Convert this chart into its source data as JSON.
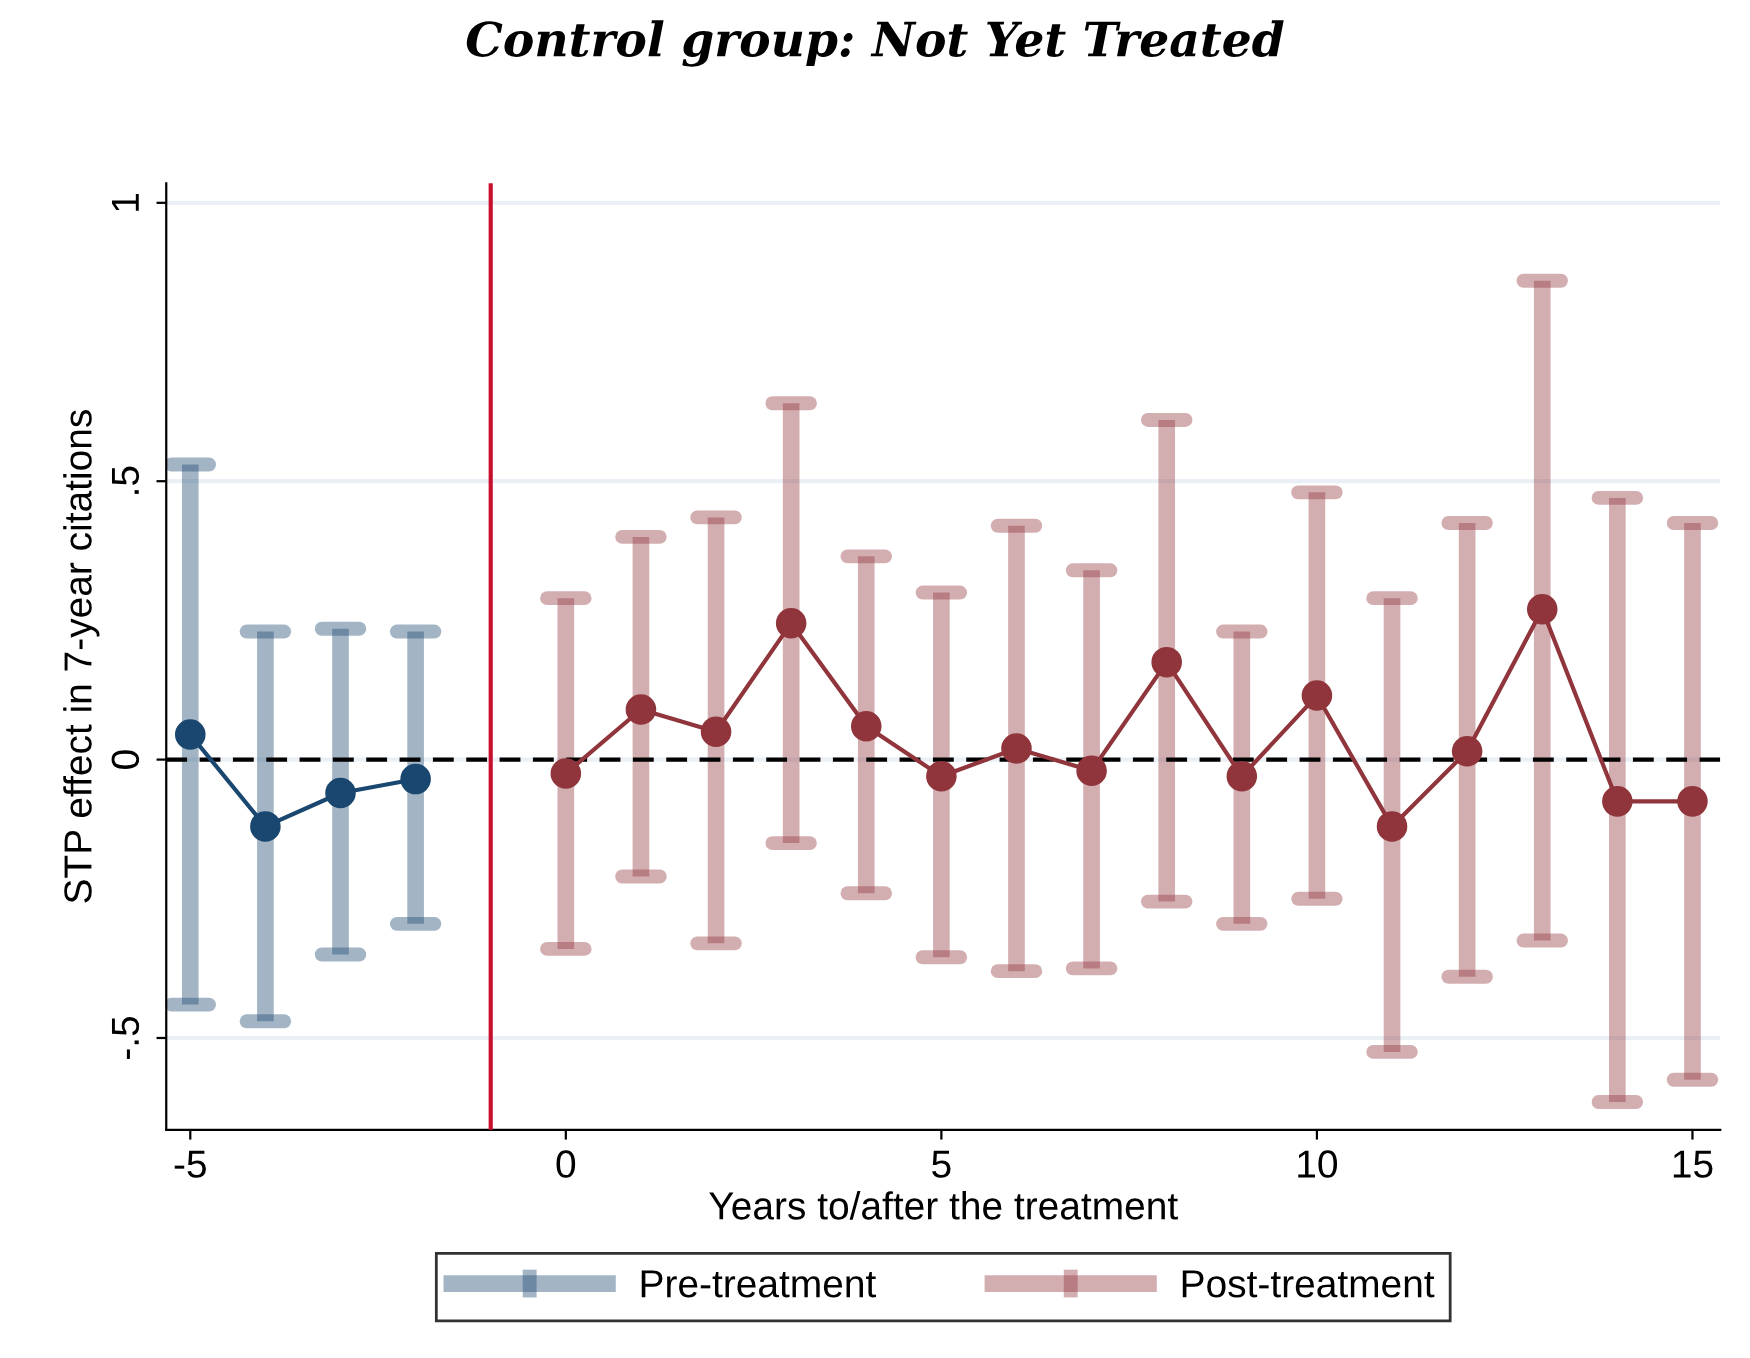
{
  "chart_data": {
    "type": "line",
    "title": "Control group: Not Yet Treated",
    "xlabel": "Years to/after the treatment",
    "ylabel": "STP effect in 7-year citations",
    "series": [
      {
        "name": "Pre-treatment",
        "color": "#1a476f",
        "x": [
          -5,
          -4,
          -3,
          -2
        ],
        "values": [
          0.045,
          -0.12,
          -0.06,
          -0.035
        ],
        "errors": [
          [
            -0.44,
            0.53
          ],
          [
            -0.47,
            0.23
          ],
          [
            -0.35,
            0.235
          ],
          [
            -0.295,
            0.23
          ]
        ]
      },
      {
        "name": "Post-treatment",
        "color": "#90353b",
        "x": [
          0,
          1,
          2,
          3,
          4,
          5,
          6,
          7,
          8,
          9,
          10,
          11,
          12,
          13,
          14,
          15
        ],
        "values": [
          -0.025,
          0.09,
          0.05,
          0.245,
          0.06,
          -0.03,
          0.02,
          -0.02,
          0.175,
          -0.03,
          0.115,
          -0.12,
          0.015,
          0.27,
          -0.075,
          -0.075
        ],
        "errors": [
          [
            -0.34,
            0.29
          ],
          [
            -0.21,
            0.4
          ],
          [
            -0.33,
            0.435
          ],
          [
            -0.15,
            0.64
          ],
          [
            -0.24,
            0.365
          ],
          [
            -0.355,
            0.3
          ],
          [
            -0.38,
            0.42
          ],
          [
            -0.375,
            0.34
          ],
          [
            -0.255,
            0.61
          ],
          [
            -0.295,
            0.23
          ],
          [
            -0.25,
            0.48
          ],
          [
            -0.525,
            0.29
          ],
          [
            -0.39,
            0.425
          ],
          [
            -0.325,
            0.86
          ],
          [
            -0.615,
            0.47
          ],
          [
            -0.575,
            0.425
          ]
        ]
      }
    ],
    "xlim": [
      -5.32,
      15.37
    ],
    "ylim": [
      -0.665,
      1.035
    ],
    "xticks": [
      -5,
      0,
      5,
      10,
      15
    ],
    "yticks": [
      {
        "value": -0.5,
        "label": "-.5"
      },
      {
        "value": 0,
        "label": "0"
      },
      {
        "value": 0.5,
        "label": ".5"
      },
      {
        "value": 1,
        "label": "1"
      }
    ],
    "ref_lines": [
      {
        "axis": "y",
        "value": 0,
        "color": "#000000",
        "line_style": "dashed"
      },
      {
        "axis": "x",
        "value": -1,
        "color": "#c8102e",
        "line_style": "solid"
      }
    ],
    "grid": "y",
    "legend": "bottom",
    "marker": "circle",
    "line_style": "solid"
  }
}
